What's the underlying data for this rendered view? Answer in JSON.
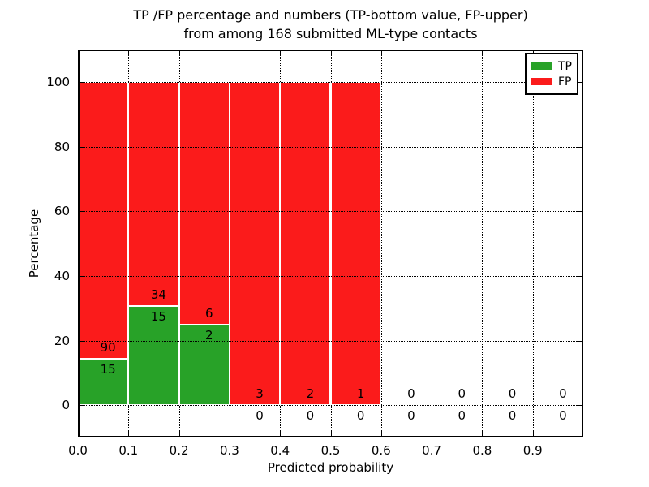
{
  "figure": {
    "title_line1": "TP /FP percentage and numbers (TP-bottom value, FP-upper)",
    "title_line2": "from among 168 submitted ML-type contacts"
  },
  "chart_data": {
    "type": "bar",
    "stacked": true,
    "title": "TP /FP percentage and numbers (TP-bottom value, FP-upper)\nfrom among 168 submitted ML-type contacts",
    "xlabel": "Predicted probability",
    "ylabel": "Percentage",
    "xlim": [
      0.0,
      1.0
    ],
    "ylim": [
      -10,
      110
    ],
    "grid": true,
    "legend_position": "upper right",
    "total_contacts": 168,
    "bin_width": 0.1,
    "bin_starts": [
      0.0,
      0.1,
      0.2,
      0.3,
      0.4,
      0.5,
      0.6,
      0.7,
      0.8,
      0.9
    ],
    "xtick_labels": [
      "0.0",
      "0.1",
      "0.2",
      "0.3",
      "0.4",
      "0.5",
      "0.6",
      "0.7",
      "0.8",
      "0.9"
    ],
    "ytick_values": [
      0,
      20,
      40,
      60,
      80,
      100
    ],
    "series": [
      {
        "name": "TP",
        "color": "#28a228",
        "counts": [
          15,
          15,
          2,
          0,
          0,
          0,
          0,
          0,
          0,
          0
        ]
      },
      {
        "name": "FP",
        "color": "#fb1b1b",
        "counts": [
          90,
          34,
          6,
          3,
          2,
          1,
          0,
          0,
          0,
          0
        ]
      }
    ],
    "bar_edge_color": "#ffffff",
    "annotation_note": "FP count shown above TP/FP boundary, TP count shown below it",
    "tp_percent_per_bin": [
      14.29,
      30.61,
      25.0,
      0,
      0,
      0,
      null,
      null,
      null,
      null
    ]
  }
}
